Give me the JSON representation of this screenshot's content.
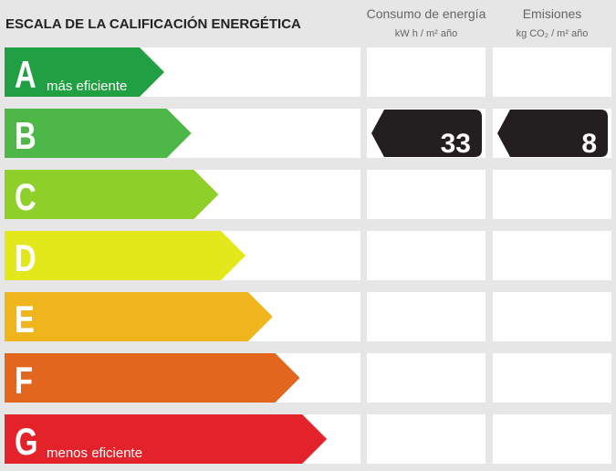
{
  "header": {
    "title": "ESCALA DE LA CALIFICACIÓN ENERGÉTICA",
    "columns": [
      {
        "title": "Consumo de energía",
        "unit": "kW h / m² año"
      },
      {
        "title": "Emisiones",
        "unit": "kg CO₂ / m² año"
      }
    ]
  },
  "rows": [
    {
      "letter": "A",
      "label": "más eficiente",
      "color": "#21a043"
    },
    {
      "letter": "B",
      "color": "#4db848",
      "consumo": 33,
      "emisiones": 8
    },
    {
      "letter": "C",
      "color": "#8fcf2a"
    },
    {
      "letter": "D",
      "color": "#e3e81a"
    },
    {
      "letter": "E",
      "color": "#f0b41c"
    },
    {
      "letter": "F",
      "color": "#e2661e"
    },
    {
      "letter": "G",
      "label": "menos eficiente",
      "color": "#e3222a"
    }
  ]
}
